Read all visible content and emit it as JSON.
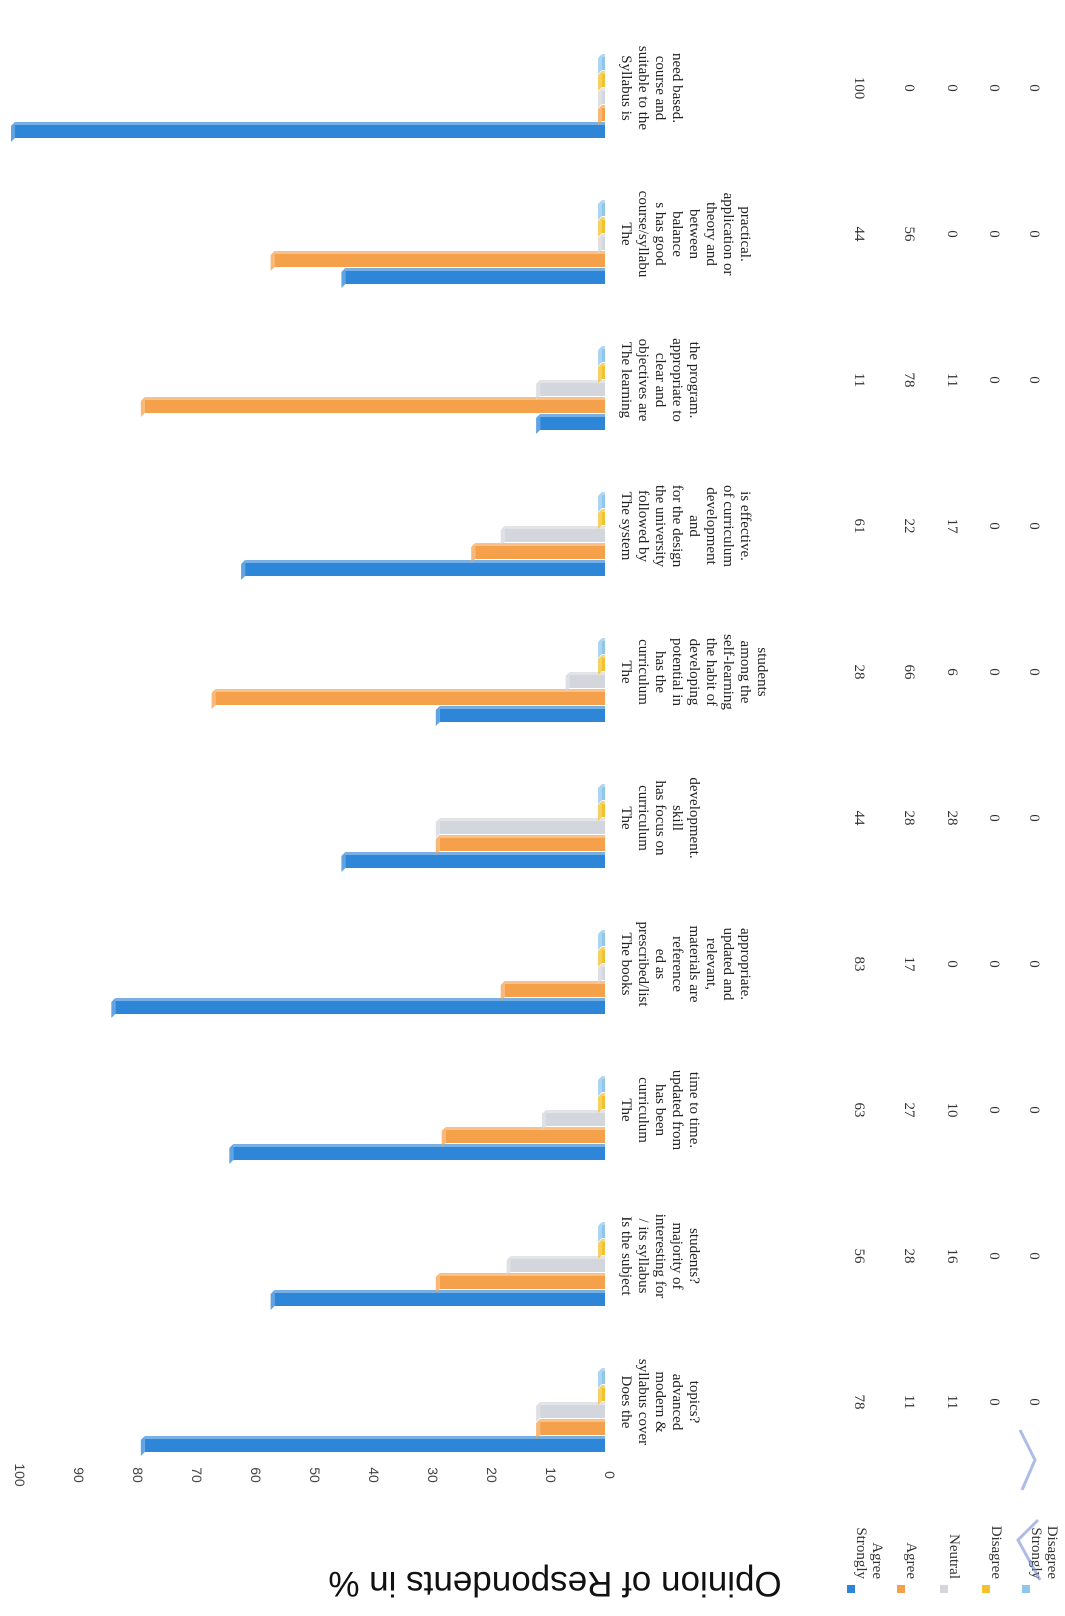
{
  "chart_data": {
    "type": "bar",
    "orientation": "rotated-vertical",
    "ylabel": "Opinion of Respondents in %",
    "ylim": [
      0,
      100
    ],
    "yticks": [
      "0",
      "10",
      "20",
      "30",
      "40",
      "50",
      "60",
      "70",
      "80",
      "90",
      "100"
    ],
    "grid": false,
    "legend_position": "bottom-left",
    "categories": [
      "Syllabus is suitable to the course and need based.",
      "The course/syllabus has good balance between theory and application or practical.",
      "The learning objectives are clear and appropriate to the program.",
      "The system followed by the university for the design and development of curriculum is effective.",
      "The curriculum has the potential in developing the habit of self-learning among the students",
      "The curriculum has focus on skill development.",
      "The books prescribed/listed as reference materials are relevant, updated and appropriate.",
      "The curriculum has been updated from time to time.",
      "Is the subject / its syllabus interesting for majority of students?",
      "Does the syllabus cover modern & advanced topics?"
    ],
    "category_lines": [
      [
        "Syllabus is",
        "suitable to the",
        "course and",
        "need based."
      ],
      [
        "The",
        "course/syllabu",
        "s has good",
        "balance",
        "between",
        "theory and",
        "application or",
        "practical."
      ],
      [
        "The learning",
        "objectives are",
        "clear and",
        "appropriate to",
        "the program."
      ],
      [
        "The system",
        "followed by",
        "the university",
        "for the design",
        "and",
        "development",
        "of curriculum",
        "is effective."
      ],
      [
        "The",
        "curriculum",
        "has the",
        "potential in",
        "developing",
        "the habit of",
        "self-learning",
        "among the",
        "students"
      ],
      [
        "The",
        "curriculum",
        "has focus on",
        "skill",
        "development."
      ],
      [
        "The books",
        "prescribed/list",
        "ed as",
        "reference",
        "materials are",
        "relevant,",
        "updated and",
        "appropriate."
      ],
      [
        "The",
        "curriculum",
        "has been",
        "updated from",
        "time to time."
      ],
      [
        "Is the subject",
        "/ its syllabus",
        "interesting for",
        "majority of",
        "students?"
      ],
      [
        "Does the",
        "syllabus cover",
        "modern &",
        "advanced",
        "topics?"
      ]
    ],
    "series": [
      {
        "name": "Strongly Agree",
        "legend_lines": [
          "Strongly",
          "Agree"
        ],
        "color": "#2e86d9",
        "values": [
          100,
          44,
          11,
          61,
          28,
          44,
          83,
          63,
          56,
          78
        ]
      },
      {
        "name": "Agree",
        "legend_lines": [
          "Agree"
        ],
        "color": "#f5a04b",
        "values": [
          0,
          56,
          78,
          22,
          66,
          28,
          17,
          27,
          28,
          11
        ]
      },
      {
        "name": "Neutral",
        "legend_lines": [
          "Neutral"
        ],
        "color": "#d3d6dc",
        "values": [
          0,
          0,
          11,
          17,
          6,
          28,
          0,
          10,
          16,
          11
        ]
      },
      {
        "name": "Disagree",
        "legend_lines": [
          "Disagree"
        ],
        "color": "#f2c12e",
        "values": [
          0,
          0,
          0,
          0,
          0,
          0,
          0,
          0,
          0,
          0
        ]
      },
      {
        "name": "Strongly Disagree",
        "legend_lines": [
          "Strongly",
          "Disagree"
        ],
        "color": "#8fc7ec",
        "values": [
          0,
          0,
          0,
          0,
          0,
          0,
          0,
          0,
          0,
          0
        ]
      }
    ]
  }
}
